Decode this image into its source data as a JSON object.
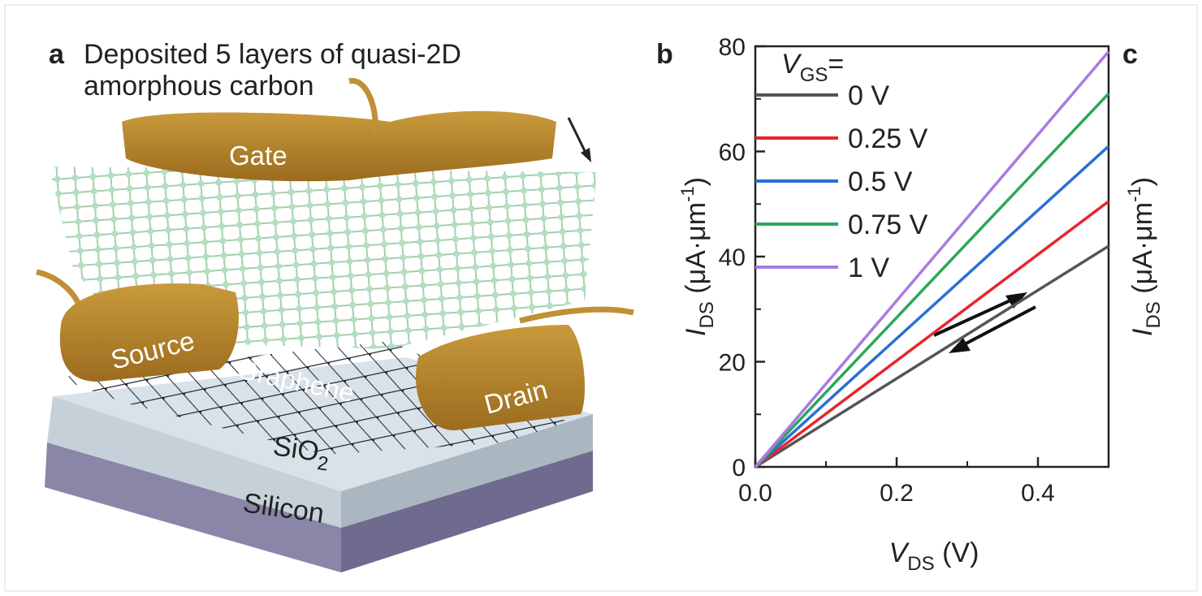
{
  "panel_a": {
    "label": "a",
    "caption": [
      "Deposited 5 layers of quasi-2D",
      "amorphous carbon"
    ],
    "components": {
      "gate": "Gate",
      "source": "Source",
      "graphene": "Graphene",
      "drain": "Drain",
      "oxide": [
        "SiO",
        "2"
      ],
      "substrate": "Silicon"
    }
  },
  "chart_data": {
    "type": "line",
    "panel_label": "b",
    "x_label": [
      "V",
      "DS",
      " (V)"
    ],
    "y_label": [
      "I",
      "DS",
      " (μA·μm",
      "-1",
      ")"
    ],
    "x": [
      0,
      0.5
    ],
    "series": [
      {
        "name": "0 V",
        "color": "#555555",
        "values": [
          0,
          42
        ]
      },
      {
        "name": "0.25 V",
        "color": "#e8262a",
        "values": [
          0,
          50.5
        ]
      },
      {
        "name": "0.5 V",
        "color": "#2a6fd6",
        "values": [
          0,
          61
        ]
      },
      {
        "name": "0.75 V",
        "color": "#2aa85a",
        "values": [
          0,
          71
        ]
      },
      {
        "name": "1 V",
        "color": "#a97be0",
        "values": [
          0,
          79
        ]
      }
    ],
    "legend_title": [
      "V",
      "GS",
      "="
    ],
    "legend": "upper left",
    "xlim": [
      0,
      0.5
    ],
    "xticks": [
      {
        "value": 0,
        "label": "0.0"
      },
      0.2,
      0.4
    ],
    "xminorticks": [
      0.1,
      0.3
    ],
    "ylim": [
      0,
      80
    ],
    "yticks": [
      0,
      20,
      40,
      60,
      80
    ],
    "yminorticks": [
      10,
      30,
      50,
      70
    ]
  },
  "panel_c": {
    "label": "c",
    "y_label": [
      "I",
      "DS",
      " (μA·μm",
      "-1",
      ")"
    ]
  }
}
